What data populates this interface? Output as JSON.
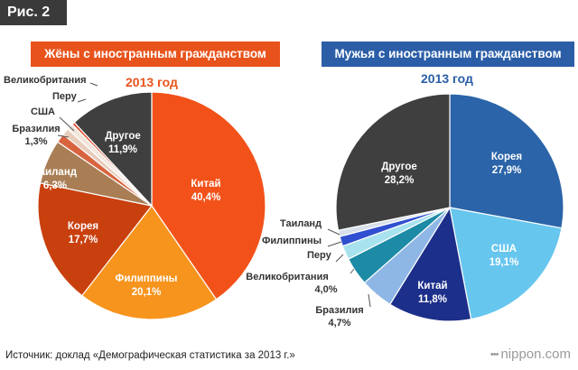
{
  "figure_label": "Рис. 2",
  "source_text": "Источник: доклад «Демографическая статистика за 2013 г.»",
  "brand": "nippon",
  "brand_suffix": ".com",
  "chart_data": [
    {
      "type": "pie",
      "title": "Жёны с иностранным гражданством",
      "subtitle": "2013 год",
      "title_color": "#e8531c",
      "slices": [
        {
          "label": "Китай",
          "value": 40.4,
          "value_label": "40,4%",
          "color": "#f2521a"
        },
        {
          "label": "Филиппины",
          "value": 20.1,
          "value_label": "20,1%",
          "color": "#f7941d"
        },
        {
          "label": "Корея",
          "value": 17.7,
          "value_label": "17,7%",
          "color": "#c9400f"
        },
        {
          "label": "Таиланд",
          "value": 6.3,
          "value_label": "6,3%",
          "color": "#a97e55"
        },
        {
          "label": "Бразилия",
          "value": 1.3,
          "value_label": "1,3%",
          "color": "#d8643f"
        },
        {
          "label": "США",
          "value": 1.0,
          "value_label": "",
          "color": "#e8cdbd"
        },
        {
          "label": "Перу",
          "value": 0.9,
          "value_label": "",
          "color": "#f2e6dc"
        },
        {
          "label": "Великобритания",
          "value": 0.4,
          "value_label": "",
          "color": "#e04a2a"
        },
        {
          "label": "Другое",
          "value": 11.9,
          "value_label": "11,9%",
          "color": "#3f3f3f"
        }
      ]
    },
    {
      "type": "pie",
      "title": "Мужья с иностранным гражданством",
      "subtitle": "2013 год",
      "title_color": "#2b5ea6",
      "slices": [
        {
          "label": "Корея",
          "value": 27.9,
          "value_label": "27,9%",
          "color": "#2b64a8"
        },
        {
          "label": "США",
          "value": 19.1,
          "value_label": "19,1%",
          "color": "#67c6ee"
        },
        {
          "label": "Китай",
          "value": 11.8,
          "value_label": "11,8%",
          "color": "#1c2f8a"
        },
        {
          "label": "Бразилия",
          "value": 4.7,
          "value_label": "4,7%",
          "color": "#8fb7e6"
        },
        {
          "label": "Великобритания",
          "value": 4.0,
          "value_label": "4,0%",
          "color": "#1d8aa6"
        },
        {
          "label": "Перу",
          "value": 2.0,
          "value_label": "",
          "color": "#a8e2ee"
        },
        {
          "label": "Филиппины",
          "value": 1.4,
          "value_label": "",
          "color": "#2f4fd0"
        },
        {
          "label": "Таиланд",
          "value": 0.9,
          "value_label": "",
          "color": "#d7e0ea"
        },
        {
          "label": "Другое",
          "value": 28.2,
          "value_label": "28,2%",
          "color": "#3f3f3f"
        }
      ]
    }
  ]
}
